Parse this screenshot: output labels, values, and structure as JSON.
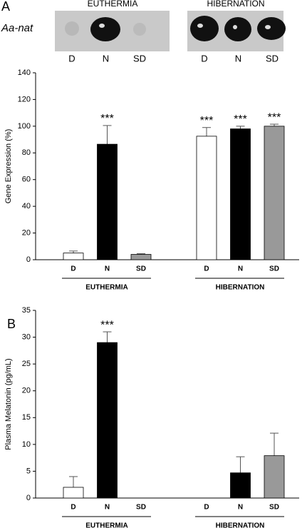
{
  "blot": {
    "gene": "Aa-nat",
    "groups": [
      {
        "name": "EUTHERMIA",
        "lanes": [
          "D",
          "N",
          "SD"
        ]
      },
      {
        "name": "HIBERNATION",
        "lanes": [
          "D",
          "N",
          "SD"
        ]
      }
    ]
  },
  "chart_data": [
    {
      "type": "bar",
      "panel": "A",
      "y_label": "Gene Expression (%)",
      "ylim": [
        0,
        140
      ],
      "yticks": [
        0,
        20,
        40,
        60,
        80,
        100,
        120,
        140
      ],
      "colors": [
        "#ffffff",
        "#000000",
        "#999999"
      ],
      "groups": [
        {
          "name": "EUTHERMIA",
          "categories": [
            "D",
            "N",
            "SD"
          ],
          "values": [
            5,
            86.5,
            4
          ],
          "errors": [
            1.5,
            14,
            0.5
          ],
          "significance": [
            null,
            "***",
            null
          ]
        },
        {
          "name": "HIBERNATION",
          "categories": [
            "D",
            "N",
            "SD"
          ],
          "values": [
            92.5,
            98,
            100
          ],
          "errors": [
            6.5,
            2,
            1.5
          ],
          "significance": [
            "***",
            "***",
            "***"
          ]
        }
      ]
    },
    {
      "type": "bar",
      "panel": "B",
      "y_label": "Plasma Melatonin (pg/mL)",
      "ylim": [
        0,
        35
      ],
      "yticks": [
        0,
        5,
        10,
        15,
        20,
        25,
        30,
        35
      ],
      "colors": [
        "#ffffff",
        "#000000",
        "#999999"
      ],
      "groups": [
        {
          "name": "EUTHERMIA",
          "categories": [
            "D",
            "N",
            "SD"
          ],
          "values": [
            2,
            29,
            null
          ],
          "errors": [
            2,
            2,
            null
          ],
          "significance": [
            null,
            "***",
            null
          ]
        },
        {
          "name": "HIBERNATION",
          "categories": [
            "D",
            "N",
            "SD"
          ],
          "values": [
            null,
            4.7,
            7.9
          ],
          "errors": [
            null,
            3,
            4.2
          ],
          "significance": [
            null,
            null,
            null
          ]
        }
      ]
    }
  ]
}
